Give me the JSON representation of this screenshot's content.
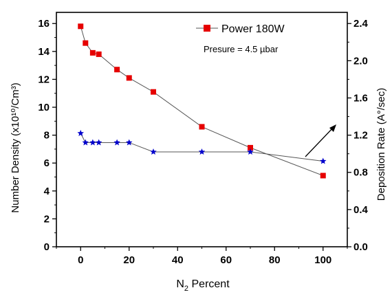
{
  "chart_data": {
    "type": "line",
    "xlabel_main": "N",
    "xlabel_sub": "2",
    "xlabel_rest": " Percent",
    "ylabel_left": "Number Density (x10¹⁰/Cm³)",
    "ylabel_right": "Deposition Rate (A°/sec)",
    "xlim": [
      -10,
      110
    ],
    "ylim_left": [
      0,
      16.8
    ],
    "ylim_right": [
      0,
      2.52
    ],
    "x_ticks": [
      0,
      20,
      40,
      60,
      80,
      100
    ],
    "y_left_ticks": [
      0,
      2,
      4,
      6,
      8,
      10,
      12,
      14,
      16
    ],
    "y_right_ticks": [
      "0.0",
      "0.4",
      "0.8",
      "1.2",
      "1.6",
      "2.0",
      "2.4"
    ],
    "y_right_tick_values": [
      0,
      0.4,
      0.8,
      1.2,
      1.6,
      2.0,
      2.4
    ],
    "grid": false,
    "legend_position": "top-right",
    "series": [
      {
        "name": "Power 180W",
        "axis": "left",
        "marker": "square",
        "color": "#e60000",
        "x": [
          0,
          2,
          5,
          7.5,
          15,
          20,
          30,
          50,
          70,
          100
        ],
        "y": [
          15.8,
          14.6,
          13.9,
          13.8,
          12.7,
          12.1,
          11.1,
          8.6,
          7.1,
          5.1
        ]
      },
      {
        "axis": "right",
        "marker": "star",
        "color": "#0000cc",
        "x": [
          0,
          2,
          5,
          7.5,
          15,
          20,
          30,
          50,
          70,
          100
        ],
        "y": [
          1.22,
          1.12,
          1.12,
          1.12,
          1.12,
          1.12,
          1.02,
          1.02,
          1.02,
          0.92
        ]
      }
    ],
    "annotation": "Presure = 4.5 µbar"
  }
}
